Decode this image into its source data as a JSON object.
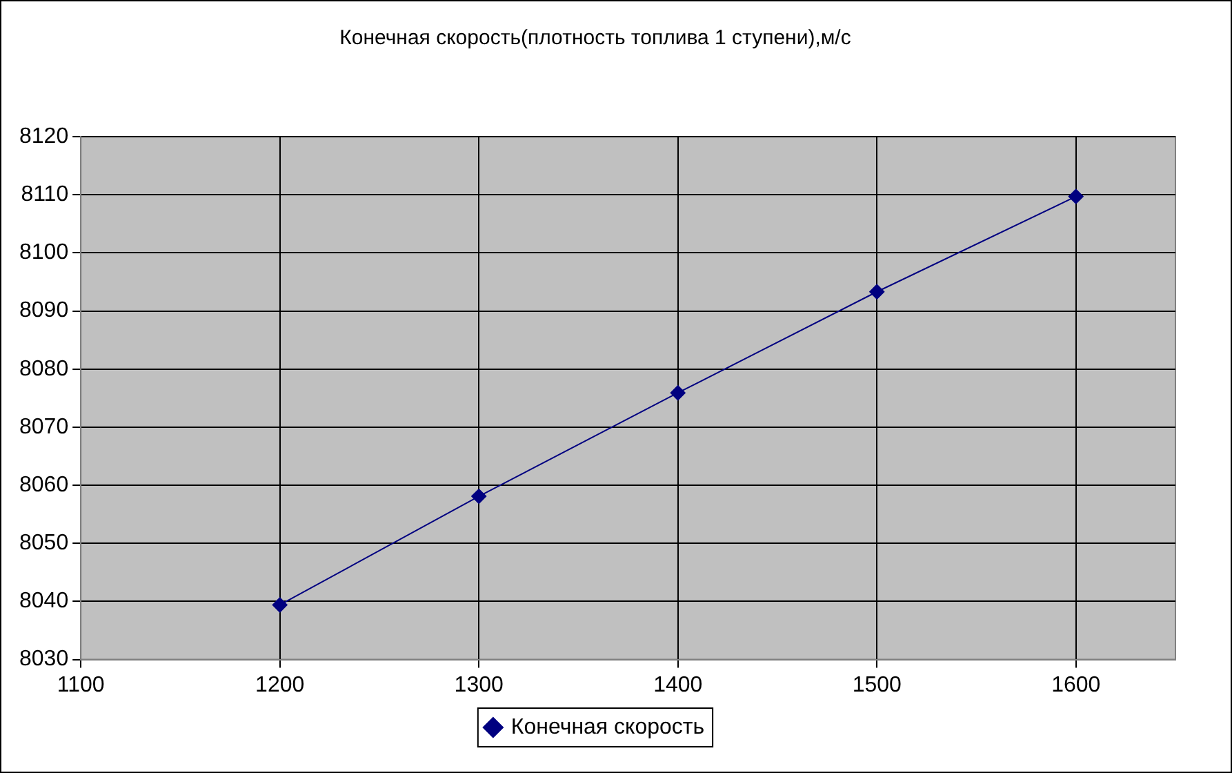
{
  "chart_data": {
    "type": "line",
    "title": "Конечная скорость(плотность топлива 1 ступени),м/с",
    "x": [
      1200,
      1300,
      1400,
      1500,
      1600
    ],
    "series": [
      {
        "name": "Конечная скорость",
        "color": "#000080",
        "values": [
          8039.4,
          8058.1,
          8075.9,
          8093.3,
          8109.7
        ]
      }
    ],
    "xlim": [
      1100,
      1650
    ],
    "xticks": [
      1100,
      1200,
      1300,
      1400,
      1500,
      1600
    ],
    "ylim": [
      8030,
      8120
    ],
    "yticks": [
      8030,
      8040,
      8050,
      8060,
      8070,
      8080,
      8090,
      8100,
      8110,
      8120
    ],
    "grid": true,
    "legend": "bottom",
    "marker": "diamond",
    "line_style": "solid"
  }
}
